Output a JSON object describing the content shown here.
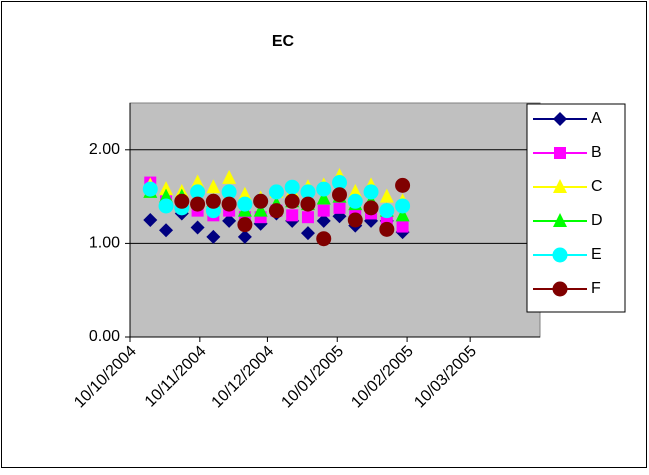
{
  "chart_data": {
    "type": "scatter",
    "title": "EC",
    "x": [
      "2004-10-19",
      "2004-10-26",
      "2004-11-02",
      "2004-11-09",
      "2004-11-16",
      "2004-11-23",
      "2004-11-30",
      "2004-12-07",
      "2004-12-14",
      "2004-12-21",
      "2004-12-28",
      "2005-01-04",
      "2005-01-11",
      "2005-01-18",
      "2005-01-25",
      "2005-02-01",
      "2005-02-08"
    ],
    "series": [
      {
        "name": "A",
        "color": "#000080",
        "marker": "diamond",
        "values": [
          1.25,
          1.14,
          1.32,
          1.17,
          1.07,
          1.24,
          1.07,
          1.21,
          1.32,
          1.24,
          1.11,
          1.24,
          1.29,
          1.19,
          1.24,
          1.24,
          1.12
        ]
      },
      {
        "name": "B",
        "color": "#ff00ff",
        "marker": "square",
        "values": [
          1.65,
          1.45,
          1.42,
          1.35,
          1.3,
          1.35,
          1.28,
          1.28,
          1.35,
          1.3,
          1.28,
          1.35,
          1.38,
          1.3,
          1.32,
          1.25,
          1.18
        ]
      },
      {
        "name": "C",
        "color": "#ffff00",
        "marker": "triangle",
        "values": [
          1.62,
          1.58,
          1.55,
          1.65,
          1.6,
          1.7,
          1.52,
          1.48,
          1.55,
          1.55,
          1.6,
          1.62,
          1.72,
          1.55,
          1.62,
          1.5,
          1.45
        ]
      },
      {
        "name": "D",
        "color": "#00ff00",
        "marker": "triangle",
        "values": [
          1.55,
          1.5,
          1.5,
          1.48,
          1.45,
          1.48,
          1.35,
          1.35,
          1.42,
          1.45,
          1.42,
          1.48,
          1.5,
          1.42,
          1.45,
          1.35,
          1.3
        ]
      },
      {
        "name": "E",
        "color": "#00ffff",
        "marker": "circle",
        "values": [
          1.58,
          1.4,
          1.38,
          1.55,
          1.35,
          1.55,
          1.42,
          1.45,
          1.55,
          1.6,
          1.55,
          1.58,
          1.65,
          1.45,
          1.55,
          1.35,
          1.4
        ]
      },
      {
        "name": "F",
        "color": "#800000",
        "marker": "circle",
        "values": [
          null,
          null,
          1.45,
          1.42,
          1.45,
          1.42,
          1.2,
          1.45,
          1.35,
          1.45,
          1.42,
          1.05,
          1.52,
          1.25,
          1.38,
          1.15,
          1.62
        ]
      }
    ],
    "xlim": [
      "2004-10-10",
      "2005-04-10"
    ],
    "xticks": [
      {
        "value": "2004-10-10",
        "label": "10/10/2004"
      },
      {
        "value": "2004-11-10",
        "label": "10/11/2004"
      },
      {
        "value": "2004-12-10",
        "label": "10/12/2004"
      },
      {
        "value": "2005-01-10",
        "label": "10/01/2005"
      },
      {
        "value": "2005-02-10",
        "label": "10/02/2005"
      },
      {
        "value": "2005-03-10",
        "label": "10/03/2005"
      }
    ],
    "ylim": [
      0,
      2.5
    ],
    "yticks": [
      {
        "value": 0,
        "label": "0.00"
      },
      {
        "value": 1,
        "label": "1.00"
      },
      {
        "value": 2,
        "label": "2.00"
      }
    ],
    "grid": true,
    "legend": "right",
    "plot_background": "#c0c0c0"
  }
}
